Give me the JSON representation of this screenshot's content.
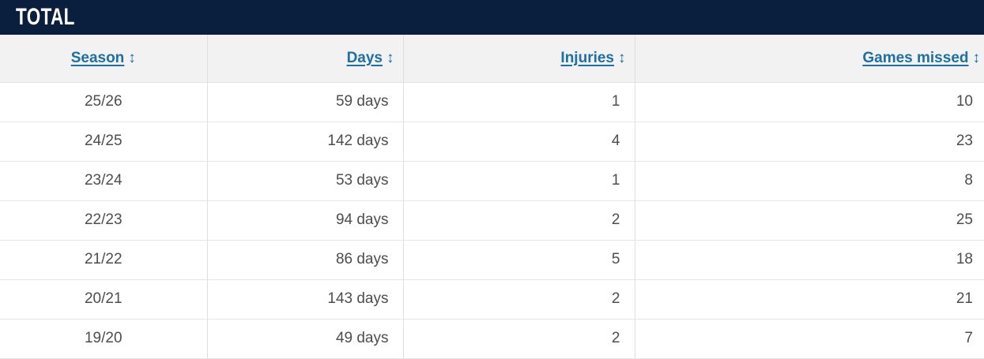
{
  "header": {
    "title": "TOTAL"
  },
  "colors": {
    "header_bar": "#0a1e3d",
    "link_blue": "#1d6fa5",
    "header_row_bg": "#f2f2f2",
    "row_text": "#4d4d4d",
    "divider": "#dedede"
  },
  "table": {
    "columns": [
      {
        "label": "Season",
        "sort_icon": "↕"
      },
      {
        "label": "Days",
        "sort_icon": "↕"
      },
      {
        "label": "Injuries",
        "sort_icon": "↕"
      },
      {
        "label": "Games missed",
        "sort_icon": "↕"
      }
    ],
    "rows": [
      {
        "season": "25/26",
        "days": "59 days",
        "injuries": "1",
        "games_missed": "10"
      },
      {
        "season": "24/25",
        "days": "142 days",
        "injuries": "4",
        "games_missed": "23"
      },
      {
        "season": "23/24",
        "days": "53 days",
        "injuries": "1",
        "games_missed": "8"
      },
      {
        "season": "22/23",
        "days": "94 days",
        "injuries": "2",
        "games_missed": "25"
      },
      {
        "season": "21/22",
        "days": "86 days",
        "injuries": "5",
        "games_missed": "18"
      },
      {
        "season": "20/21",
        "days": "143 days",
        "injuries": "2",
        "games_missed": "21"
      },
      {
        "season": "19/20",
        "days": "49 days",
        "injuries": "2",
        "games_missed": "7"
      }
    ]
  }
}
